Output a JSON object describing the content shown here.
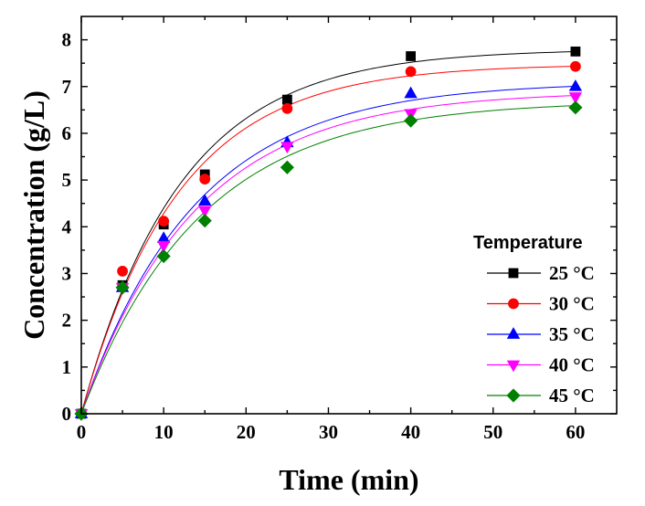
{
  "chart_data": {
    "type": "scatter",
    "title": "",
    "xlabel": "Time (min)",
    "ylabel": "Concentration (g/L)",
    "xlim": [
      0,
      65
    ],
    "ylim": [
      0,
      8.5
    ],
    "xticks": [
      0,
      10,
      20,
      30,
      40,
      50,
      60
    ],
    "yticks": [
      0,
      1,
      2,
      3,
      4,
      5,
      6,
      7,
      8
    ],
    "grid": false,
    "legend": {
      "title": "Temperature",
      "placement": "bottom-right"
    },
    "x": [
      0,
      5,
      10,
      15,
      25,
      40,
      60
    ],
    "series": [
      {
        "name": "25 °C",
        "color": "#000000",
        "marker": "square",
        "values": [
          0,
          2.75,
          4.05,
          5.12,
          6.72,
          7.65,
          7.75
        ],
        "fit": {
          "model": "first-order",
          "cmax": 7.8,
          "k": 0.083
        }
      },
      {
        "name": "30 °C",
        "color": "#ff0000",
        "marker": "circle",
        "values": [
          0,
          3.05,
          4.12,
          5.02,
          6.53,
          7.32,
          7.43
        ],
        "fit": {
          "model": "first-order",
          "cmax": 7.48,
          "k": 0.085
        }
      },
      {
        "name": "35 °C",
        "color": "#0000ff",
        "marker": "triangle-up",
        "values": [
          0,
          2.7,
          3.75,
          4.55,
          5.8,
          6.85,
          7.0
        ],
        "fit": {
          "model": "first-order",
          "cmax": 7.1,
          "k": 0.072
        }
      },
      {
        "name": "40 °C",
        "color": "#ff00ff",
        "marker": "triangle-down",
        "values": [
          0,
          2.7,
          3.6,
          4.35,
          5.72,
          6.42,
          6.78
        ],
        "fit": {
          "model": "first-order",
          "cmax": 6.9,
          "k": 0.072
        }
      },
      {
        "name": "45 °C",
        "color": "#008000",
        "marker": "diamond",
        "values": [
          0,
          2.7,
          3.37,
          4.13,
          5.27,
          6.27,
          6.55
        ],
        "fit": {
          "model": "first-order",
          "cmax": 6.7,
          "k": 0.069
        }
      }
    ]
  }
}
